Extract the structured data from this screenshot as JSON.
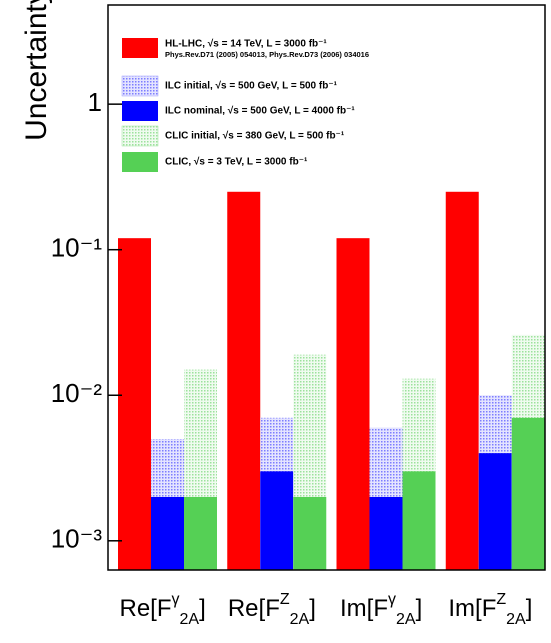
{
  "chart_data": {
    "type": "bar",
    "ylabel": "Uncertainty",
    "categories": [
      "Re[F^{γ}_{2A}]",
      "Re[F^{Z}_{2A}]",
      "Im[F^{γ}_{2A}]",
      "Im[F^{Z}_{2A}]"
    ],
    "series": [
      {
        "name": "HL-LHC, √s = 14 TeV, L = 3000 fb⁻¹",
        "color": "#ff0000",
        "values": [
          0.12,
          0.25,
          0.12,
          0.25
        ]
      },
      {
        "name": "ILC initial, √s = 500 GeV, L = 500 fb⁻¹",
        "color": "#9c9cff",
        "values": [
          0.005,
          0.007,
          0.006,
          0.01
        ]
      },
      {
        "name": "ILC nominal, √s = 500 GeV, L = 4000 fb⁻¹",
        "color": "#0000ff",
        "values": [
          0.002,
          0.003,
          0.002,
          0.004
        ]
      },
      {
        "name": "CLIC initial, √s = 380 GeV, L = 500 fb⁻¹",
        "color": "#9ce29c",
        "values": [
          0.015,
          0.019,
          0.013,
          0.026
        ]
      },
      {
        "name": "CLIC, √s = 3 TeV, L = 3000 fb⁻¹",
        "color": "#55d055",
        "values": [
          0.002,
          0.002,
          0.003,
          0.007
        ]
      }
    ],
    "legend_note": "Phys.Rev.D71 (2005) 054013,  Phys.Rev.D73 (2006) 034016",
    "ylim": [
      0.00063,
      4.8
    ],
    "log_y": true,
    "yticks": [
      {
        "value": 0.001,
        "label": "10⁻³"
      },
      {
        "value": 0.01,
        "label": "10⁻²"
      },
      {
        "value": 0.1,
        "label": "10⁻¹"
      },
      1
    ],
    "legend": "upper left"
  }
}
